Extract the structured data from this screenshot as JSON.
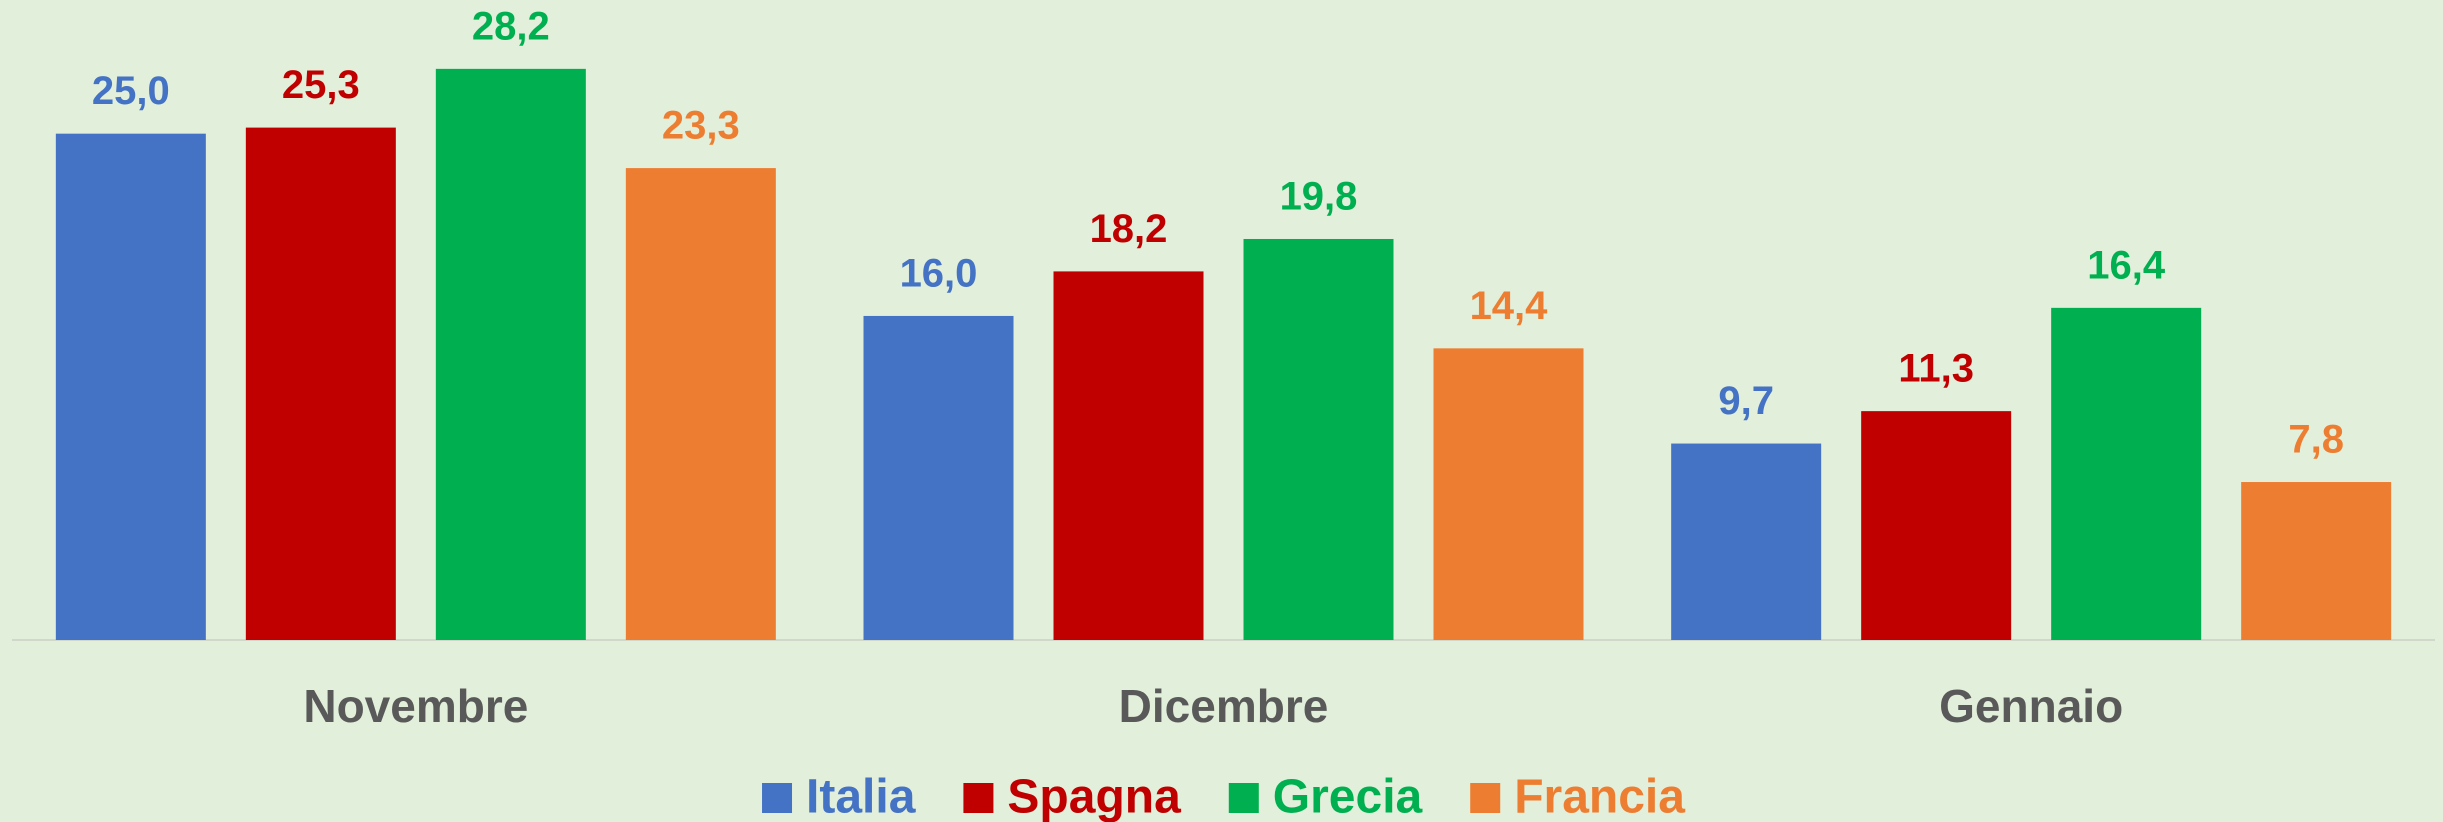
{
  "chart_data": {
    "type": "bar",
    "categories": [
      "Novembre",
      "Dicembre",
      "Gennaio"
    ],
    "series": [
      {
        "name": "Italia",
        "color": "#4472c4",
        "values": [
          25.0,
          16.0,
          9.7
        ],
        "value_labels": [
          "25,0",
          "16,0",
          "9,7"
        ]
      },
      {
        "name": "Spagna",
        "color": "#c00000",
        "values": [
          25.3,
          18.2,
          11.3
        ],
        "value_labels": [
          "25,3",
          "18,2",
          "11,3"
        ]
      },
      {
        "name": "Grecia",
        "color": "#00b050",
        "values": [
          28.2,
          19.8,
          16.4
        ],
        "value_labels": [
          "28,2",
          "19,8",
          "16,4"
        ]
      },
      {
        "name": "Francia",
        "color": "#ed7d31",
        "values": [
          23.3,
          14.4,
          7.8
        ],
        "value_labels": [
          "23,3",
          "14,4",
          "7,8"
        ]
      }
    ],
    "ylim": [
      0,
      31.6
    ],
    "legend": "bottom"
  }
}
